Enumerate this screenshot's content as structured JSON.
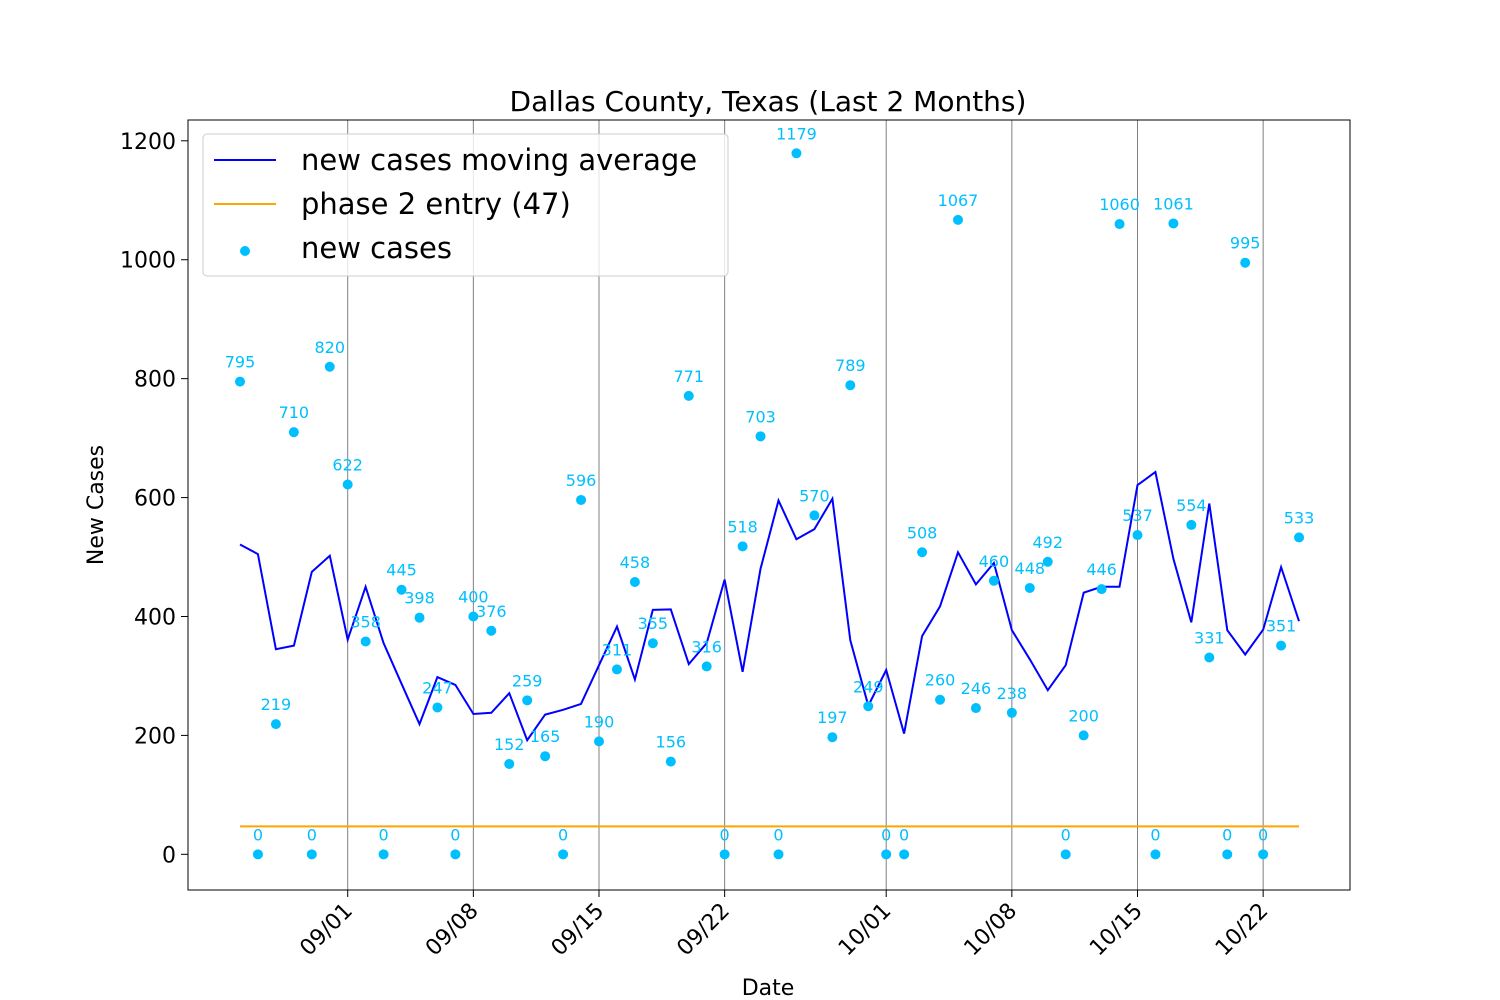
{
  "chart_data": {
    "type": "line",
    "title": "Dallas County, Texas (Last 2 Months)",
    "xlabel": "Date",
    "ylabel": "New Cases",
    "ylim": [
      -60,
      1235
    ],
    "yticks": [
      0,
      200,
      400,
      600,
      800,
      1000,
      1200
    ],
    "x_dates": [
      "08/26",
      "08/27",
      "08/28",
      "08/29",
      "08/30",
      "08/31",
      "09/01",
      "09/02",
      "09/03",
      "09/04",
      "09/05",
      "09/06",
      "09/07",
      "09/08",
      "09/09",
      "09/10",
      "09/11",
      "09/12",
      "09/13",
      "09/14",
      "09/15",
      "09/16",
      "09/17",
      "09/18",
      "09/19",
      "09/20",
      "09/21",
      "09/22",
      "09/23",
      "09/24",
      "09/25",
      "09/26",
      "09/27",
      "09/28",
      "09/29",
      "09/30",
      "10/01",
      "10/02",
      "10/03",
      "10/04",
      "10/05",
      "10/06",
      "10/07",
      "10/08",
      "10/09",
      "10/10",
      "10/11",
      "10/12",
      "10/13",
      "10/14",
      "10/15",
      "10/16",
      "10/17",
      "10/18",
      "10/19",
      "10/20",
      "10/21",
      "10/22",
      "10/23",
      "10/24"
    ],
    "xticks": [
      "09/01",
      "09/08",
      "09/15",
      "09/22",
      "10/01",
      "10/08",
      "10/15",
      "10/22"
    ],
    "grid": "vertical lines at x ticks",
    "legend_position": "upper left",
    "series": [
      {
        "name": "new cases moving average",
        "type": "line",
        "color": "#0000ff",
        "values": [
          521,
          505,
          345,
          351,
          475,
          502,
          361,
          450,
          355,
          287,
          219,
          298,
          285,
          236,
          238,
          271,
          192,
          235,
          243,
          253,
          318,
          383,
          294,
          411,
          412,
          320,
          355,
          462,
          307,
          480,
          595,
          530,
          547,
          598,
          360,
          250,
          310,
          203,
          367,
          417,
          508,
          454,
          490,
          377,
          328,
          276,
          318,
          440,
          450,
          450,
          621,
          643,
          497,
          390,
          590,
          377,
          336,
          378,
          483,
          392
        ]
      },
      {
        "name": "phase 2 entry (47)",
        "type": "line",
        "color": "#ffa500",
        "values": [
          47,
          47,
          47,
          47,
          47,
          47,
          47,
          47,
          47,
          47,
          47,
          47,
          47,
          47,
          47,
          47,
          47,
          47,
          47,
          47,
          47,
          47,
          47,
          47,
          47,
          47,
          47,
          47,
          47,
          47,
          47,
          47,
          47,
          47,
          47,
          47,
          47,
          47,
          47,
          47,
          47,
          47,
          47,
          47,
          47,
          47,
          47,
          47,
          47,
          47,
          47,
          47,
          47,
          47,
          47,
          47,
          47,
          47,
          47,
          47
        ]
      },
      {
        "name": "new cases",
        "type": "scatter",
        "color": "#00bfff",
        "values": [
          795,
          0,
          219,
          710,
          0,
          820,
          622,
          358,
          0,
          445,
          398,
          247,
          0,
          400,
          376,
          152,
          259,
          165,
          0,
          596,
          190,
          311,
          458,
          355,
          156,
          771,
          316,
          0,
          518,
          703,
          0,
          1179,
          570,
          197,
          789,
          249,
          0,
          0,
          508,
          260,
          1067,
          246,
          460,
          238,
          448,
          492,
          0,
          200,
          446,
          1060,
          537,
          0,
          1061,
          554,
          331,
          0,
          995,
          0,
          351,
          533
        ]
      }
    ]
  }
}
